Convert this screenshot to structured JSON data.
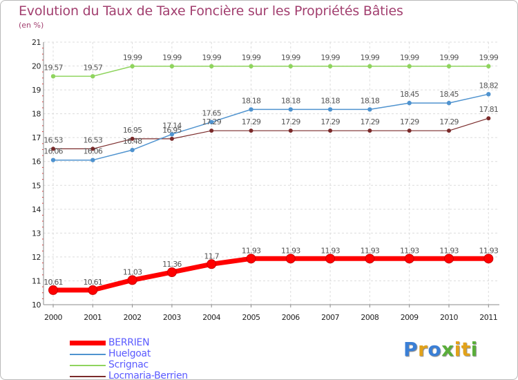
{
  "title": "Evolution du Taux de Taxe Foncière sur les Propriétés Bâties",
  "subtitle": "(en %)",
  "logo_text": "Proxiti",
  "chart_data": {
    "type": "line",
    "title": "Evolution du Taux de Taxe Foncière sur les Propriétés Bâties",
    "ylabel": "(en %)",
    "xlabel": "",
    "ylim": [
      10,
      21
    ],
    "yticks": [
      "10",
      "11",
      "12",
      "13",
      "14",
      "15",
      "16",
      "17",
      "18",
      "19",
      "20",
      "21"
    ],
    "categories": [
      "2000",
      "2001",
      "2002",
      "2003",
      "2004",
      "2005",
      "2006",
      "2007",
      "2008",
      "2009",
      "2010",
      "2011"
    ],
    "grid": true,
    "legend_position": "bottom-left",
    "series": [
      {
        "name": "BERRIEN",
        "color": "#ff0000",
        "values": [
          10.61,
          10.61,
          11.03,
          11.36,
          11.7,
          11.93,
          11.93,
          11.93,
          11.93,
          11.93,
          11.93,
          11.93
        ],
        "labels": [
          "10.61",
          "10.61",
          "11.03",
          "11.36",
          "11.7",
          "11.93",
          "11.93",
          "11.93",
          "11.93",
          "11.93",
          "11.93",
          "11.93"
        ]
      },
      {
        "name": "Huelgoat",
        "color": "#4f93cf",
        "values": [
          16.06,
          16.06,
          16.48,
          17.14,
          17.65,
          18.18,
          18.18,
          18.18,
          18.18,
          18.45,
          18.45,
          18.82
        ],
        "labels": [
          "16.06",
          "16.06",
          "16.48",
          "17.14",
          "17.65",
          "18.18",
          "18.18",
          "18.18",
          "18.18",
          "18.45",
          "18.45",
          "18.82"
        ]
      },
      {
        "name": "Scrignac",
        "color": "#8fd45e",
        "values": [
          19.57,
          19.57,
          19.99,
          19.99,
          19.99,
          19.99,
          19.99,
          19.99,
          19.99,
          19.99,
          19.99,
          19.99
        ],
        "labels": [
          "19.57",
          "19.57",
          "19.99",
          "19.99",
          "19.99",
          "19.99",
          "19.99",
          "19.99",
          "19.99",
          "19.99",
          "19.99",
          "19.99"
        ]
      },
      {
        "name": "Locmaria-Berrien",
        "color": "#7a2a2a",
        "values": [
          16.53,
          16.53,
          16.95,
          16.95,
          17.29,
          17.29,
          17.29,
          17.29,
          17.29,
          17.29,
          17.29,
          17.81
        ],
        "labels": [
          "16.53",
          "16.53",
          "16.95",
          "16.95",
          "17.29",
          "17.29",
          "17.29",
          "17.29",
          "17.29",
          "17.29",
          "17.29",
          "17.81"
        ]
      }
    ]
  }
}
